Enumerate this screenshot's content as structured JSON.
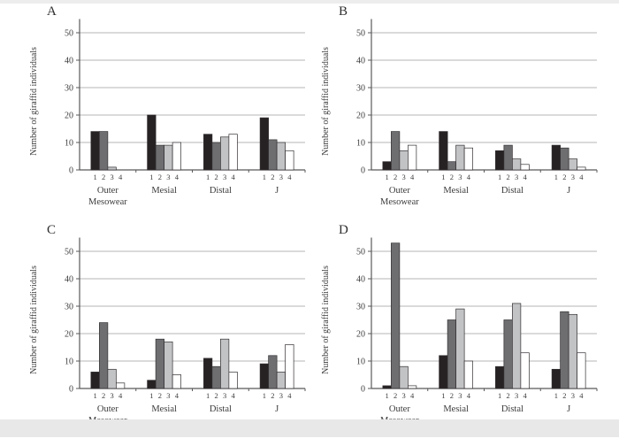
{
  "page": {
    "background": "#ffffff",
    "top_strip_color": "#ededed",
    "bottom_strip_color": "#e8e8e8"
  },
  "chart_data": {
    "type": "bar",
    "title": "",
    "xlabel": "",
    "ylabel": "Number of giraffid individuals",
    "ylim": [
      0,
      55
    ],
    "yticks": [
      0,
      10,
      20,
      30,
      40,
      50
    ],
    "grid": true,
    "legend_position": "none",
    "categories": [
      [
        "Outer",
        "Mesowear"
      ],
      [
        "Mesial"
      ],
      [
        "Distal"
      ],
      [
        "J"
      ]
    ],
    "series_labels": [
      "1",
      "2",
      "3",
      "4"
    ],
    "series_colors": [
      "#262223",
      "#6e6e71",
      "#c2c3c5",
      "#ffffff"
    ],
    "colors": {
      "grid": "#b4b4b6",
      "axis": "#59595b",
      "text": "#3b3b3b",
      "bar_stroke": "#343032"
    },
    "panels": [
      {
        "label": "A",
        "series": [
          {
            "name": "1",
            "values": [
              14,
              20,
              13,
              19
            ]
          },
          {
            "name": "2",
            "values": [
              14,
              9,
              10,
              11
            ]
          },
          {
            "name": "3",
            "values": [
              1,
              9,
              12,
              10
            ]
          },
          {
            "name": "4",
            "values": [
              0,
              10,
              13,
              7
            ]
          }
        ]
      },
      {
        "label": "B",
        "series": [
          {
            "name": "1",
            "values": [
              3,
              14,
              7,
              9
            ]
          },
          {
            "name": "2",
            "values": [
              14,
              3,
              9,
              8
            ]
          },
          {
            "name": "3",
            "values": [
              7,
              9,
              4,
              4
            ]
          },
          {
            "name": "4",
            "values": [
              9,
              8,
              2,
              1
            ]
          }
        ]
      },
      {
        "label": "C",
        "series": [
          {
            "name": "1",
            "values": [
              6,
              3,
              11,
              9
            ]
          },
          {
            "name": "2",
            "values": [
              24,
              18,
              8,
              12
            ]
          },
          {
            "name": "3",
            "values": [
              7,
              17,
              18,
              6
            ]
          },
          {
            "name": "4",
            "values": [
              2,
              5,
              6,
              16
            ]
          }
        ]
      },
      {
        "label": "D",
        "series": [
          {
            "name": "1",
            "values": [
              1,
              12,
              8,
              7
            ]
          },
          {
            "name": "2",
            "values": [
              53,
              25,
              25,
              28
            ]
          },
          {
            "name": "3",
            "values": [
              8,
              29,
              31,
              27
            ]
          },
          {
            "name": "4",
            "values": [
              1,
              10,
              13,
              13
            ]
          }
        ]
      }
    ]
  }
}
